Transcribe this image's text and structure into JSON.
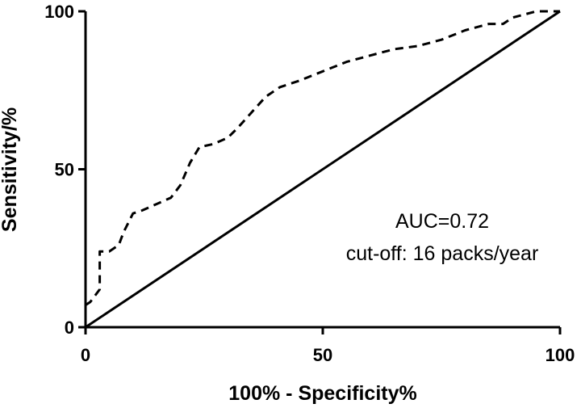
{
  "chart_data": {
    "type": "line",
    "xlabel": "100% - Specificity%",
    "ylabel": "Sensitivity/%",
    "xlim": [
      0,
      100
    ],
    "ylim": [
      0,
      100
    ],
    "xticks": [
      "0",
      "50",
      "100"
    ],
    "yticks": [
      "0",
      "50",
      "100"
    ],
    "grid": false,
    "series": [
      {
        "style": "dashed",
        "x": [
          0,
          1,
          2,
          3,
          3,
          5,
          7,
          8,
          10,
          12,
          15,
          18,
          20,
          22,
          24,
          27,
          30,
          32,
          35,
          38,
          41,
          45,
          50,
          55,
          60,
          65,
          70,
          75,
          80,
          85,
          88,
          90,
          95,
          100
        ],
        "y": [
          7,
          8,
          10,
          12,
          24,
          24,
          26,
          30,
          36,
          37,
          39,
          41,
          45,
          52,
          57,
          58,
          60,
          63,
          68,
          73,
          76,
          78,
          81,
          84,
          86,
          88,
          89,
          91,
          94,
          96,
          96,
          98,
          100,
          100
        ]
      },
      {
        "style": "solid",
        "x": [
          0,
          100
        ],
        "y": [
          0,
          100
        ]
      }
    ],
    "annotations": [
      "AUC=0.72",
      "cut-off: 16 packs/year"
    ]
  }
}
